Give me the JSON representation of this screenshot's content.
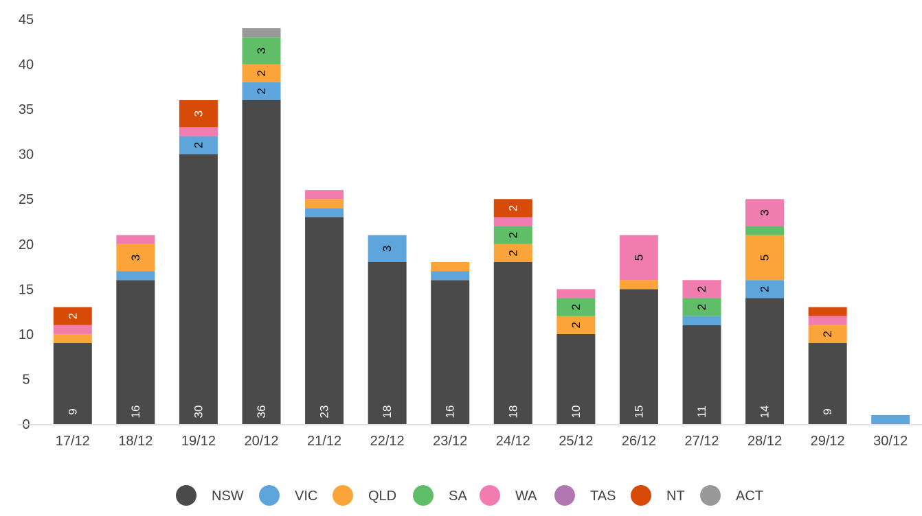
{
  "chart_data": {
    "type": "bar",
    "stacked": true,
    "title": "",
    "xlabel": "",
    "ylabel": "",
    "ylim": [
      0,
      45
    ],
    "yticks": [
      0,
      5,
      10,
      15,
      20,
      25,
      30,
      35,
      40,
      45
    ],
    "grid": false,
    "legend_position": "bottom",
    "categories": [
      "17/12",
      "18/12",
      "19/12",
      "20/12",
      "21/12",
      "22/12",
      "23/12",
      "24/12",
      "25/12",
      "26/12",
      "27/12",
      "28/12",
      "29/12",
      "30/12"
    ],
    "series": [
      {
        "name": "NSW",
        "color": "#4a4a4a",
        "label_color": "#ffffff",
        "values": [
          9,
          16,
          30,
          36,
          23,
          18,
          16,
          18,
          10,
          15,
          11,
          14,
          9,
          0
        ]
      },
      {
        "name": "VIC",
        "color": "#5da5da",
        "label_color": "#000000",
        "values": [
          0,
          1,
          2,
          2,
          1,
          3,
          1,
          0,
          0,
          0,
          1,
          2,
          0,
          1
        ]
      },
      {
        "name": "QLD",
        "color": "#faa43a",
        "label_color": "#000000",
        "values": [
          1,
          3,
          0,
          2,
          1,
          0,
          1,
          2,
          2,
          1,
          0,
          5,
          2,
          0
        ]
      },
      {
        "name": "SA",
        "color": "#60bd68",
        "label_color": "#000000",
        "values": [
          0,
          0,
          0,
          3,
          0,
          0,
          0,
          2,
          2,
          0,
          2,
          1,
          0,
          0
        ]
      },
      {
        "name": "WA",
        "color": "#f17cb0",
        "label_color": "#000000",
        "values": [
          1,
          1,
          1,
          0,
          1,
          0,
          0,
          1,
          1,
          5,
          2,
          3,
          1,
          0
        ]
      },
      {
        "name": "TAS",
        "color": "#b276b2",
        "label_color": "#000000",
        "values": [
          0,
          0,
          0,
          0,
          0,
          0,
          0,
          0,
          0,
          0,
          0,
          0,
          0,
          0
        ]
      },
      {
        "name": "NT",
        "color": "#d84a08",
        "label_color": "#ffffff",
        "values": [
          2,
          0,
          3,
          0,
          0,
          0,
          0,
          2,
          0,
          0,
          0,
          0,
          1,
          0
        ]
      },
      {
        "name": "ACT",
        "color": "#999999",
        "label_color": "#000000",
        "values": [
          0,
          0,
          0,
          1,
          0,
          0,
          0,
          0,
          0,
          0,
          0,
          0,
          0,
          0
        ]
      }
    ]
  }
}
